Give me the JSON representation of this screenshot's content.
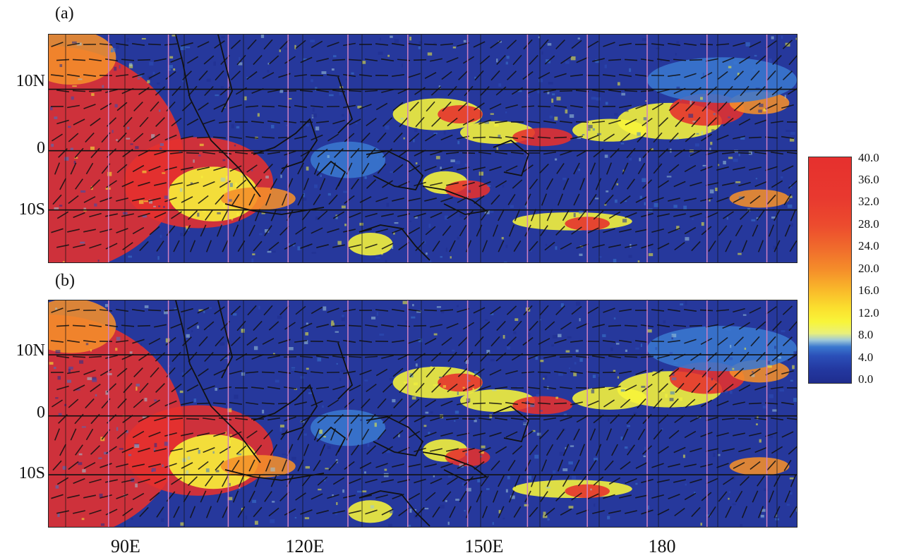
{
  "panels": [
    {
      "label": "(a)"
    },
    {
      "label": "(b)"
    }
  ],
  "lat_labels": [
    "10N",
    "0",
    "10S"
  ],
  "lon_labels": [
    "90E",
    "120E",
    "150E",
    "180"
  ],
  "colorbar": {
    "ticks": [
      "40.0",
      "36.0",
      "32.0",
      "28.0",
      "24.0",
      "20.0",
      "16.0",
      "12.0",
      "8.0",
      "4.0",
      "0.0"
    ],
    "colors": {
      "low": "#1f2d8e",
      "mid_blue": "#3a78cf",
      "yellow": "#f8f53a",
      "orange": "#f58e2a",
      "high": "#e6302e"
    }
  },
  "map": {
    "background_color": "#26389c",
    "grid_line_color": "#111111",
    "meridian_color": "#d080c0",
    "wind_arrow_color": "#111111"
  }
}
